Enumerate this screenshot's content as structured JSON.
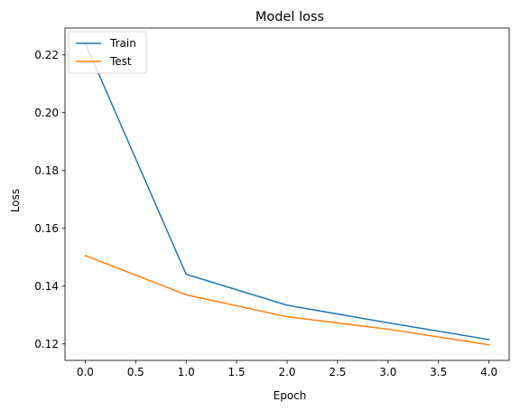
{
  "chart_data": {
    "type": "line",
    "title": "Model loss",
    "xlabel": "Epoch",
    "ylabel": "Loss",
    "x": [
      0,
      1,
      2,
      3,
      4
    ],
    "xlim": [
      -0.2,
      4.2
    ],
    "ylim": [
      0.1143,
      0.2293
    ],
    "xticks": [
      0.0,
      0.5,
      1.0,
      1.5,
      2.0,
      2.5,
      3.0,
      3.5,
      4.0
    ],
    "xtick_labels": [
      "0.0",
      "0.5",
      "1.0",
      "1.5",
      "2.0",
      "2.5",
      "3.0",
      "3.5",
      "4.0"
    ],
    "yticks": [
      0.12,
      0.14,
      0.16,
      0.18,
      0.2,
      0.22
    ],
    "ytick_labels": [
      "0.12",
      "0.14",
      "0.16",
      "0.18",
      "0.20",
      "0.22"
    ],
    "grid": false,
    "legend_position": "upper left",
    "series": [
      {
        "name": "Train",
        "color": "#1f77b4",
        "values": [
          0.2241,
          0.1441,
          0.1334,
          0.1273,
          0.1215
        ]
      },
      {
        "name": "Test",
        "color": "#ff7f0e",
        "values": [
          0.1506,
          0.137,
          0.1294,
          0.1251,
          0.1197
        ]
      }
    ]
  }
}
